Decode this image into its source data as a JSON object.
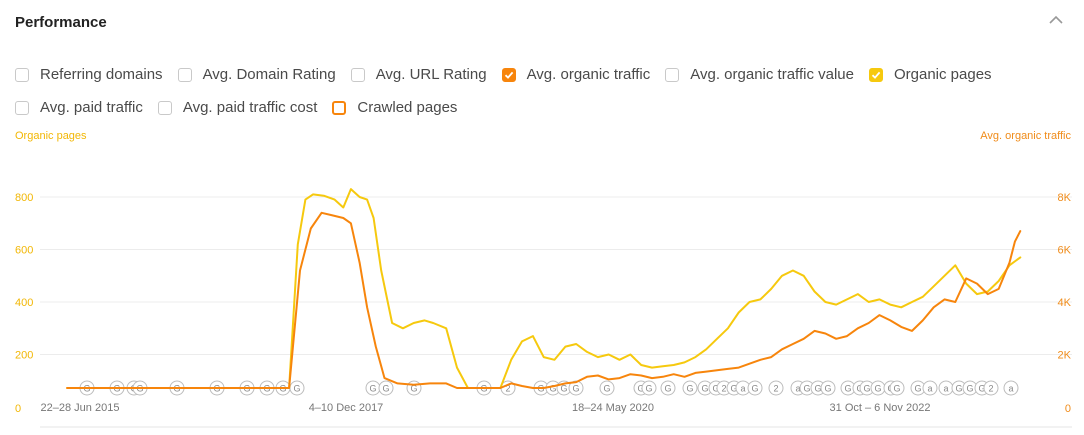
{
  "header": {
    "title": "Performance"
  },
  "legend": {
    "items": [
      {
        "label": "Referring domains",
        "checked": false
      },
      {
        "label": "Avg. Domain Rating",
        "checked": false
      },
      {
        "label": "Avg. URL Rating",
        "checked": false
      },
      {
        "label": "Avg. organic traffic",
        "checked": true,
        "color": "#f7850c"
      },
      {
        "label": "Avg. organic traffic value",
        "checked": false
      },
      {
        "label": "Organic pages",
        "checked": true,
        "color": "#f6c90e"
      },
      {
        "label": "Avg. paid traffic",
        "checked": false
      },
      {
        "label": "Avg. paid traffic cost",
        "checked": false
      },
      {
        "label": "Crawled pages",
        "checked": false,
        "color": "#f7850c"
      }
    ]
  },
  "chart_data": {
    "type": "line",
    "y_left_title": "Organic pages",
    "y_right_title": "Avg. organic traffic",
    "y_left_ticks": [
      "0",
      "200",
      "400",
      "600",
      "800"
    ],
    "y_right_ticks": [
      "0",
      "2K",
      "4K",
      "6K",
      "8K"
    ],
    "x_tick_labels": [
      "22–28 Jun 2015",
      "4–10 Dec 2017",
      "18–24 May 2020",
      "31 Oct – 6 Nov 2022"
    ],
    "ylim_left": [
      0,
      880
    ],
    "ylim_right": [
      0,
      8800
    ],
    "series": [
      {
        "name": "Organic pages",
        "color": "#f6c90e",
        "axis": "left",
        "points": [
          [
            2015.45,
            0
          ],
          [
            2017.4,
            0
          ],
          [
            2017.5,
            10
          ],
          [
            2017.58,
            620
          ],
          [
            2017.65,
            790
          ],
          [
            2017.72,
            810
          ],
          [
            2017.82,
            805
          ],
          [
            2017.92,
            790
          ],
          [
            2018.0,
            760
          ],
          [
            2018.07,
            830
          ],
          [
            2018.15,
            800
          ],
          [
            2018.22,
            790
          ],
          [
            2018.28,
            720
          ],
          [
            2018.35,
            520
          ],
          [
            2018.45,
            320
          ],
          [
            2018.55,
            300
          ],
          [
            2018.65,
            320
          ],
          [
            2018.75,
            330
          ],
          [
            2018.83,
            320
          ],
          [
            2018.95,
            300
          ],
          [
            2019.05,
            150
          ],
          [
            2019.15,
            60
          ],
          [
            2019.25,
            20
          ],
          [
            2019.35,
            5
          ],
          [
            2019.45,
            30
          ],
          [
            2019.55,
            180
          ],
          [
            2019.65,
            250
          ],
          [
            2019.75,
            270
          ],
          [
            2019.85,
            190
          ],
          [
            2019.95,
            180
          ],
          [
            2020.05,
            230
          ],
          [
            2020.15,
            240
          ],
          [
            2020.25,
            210
          ],
          [
            2020.35,
            190
          ],
          [
            2020.45,
            200
          ],
          [
            2020.55,
            180
          ],
          [
            2020.65,
            200
          ],
          [
            2020.75,
            160
          ],
          [
            2020.85,
            150
          ],
          [
            2020.95,
            155
          ],
          [
            2021.05,
            160
          ],
          [
            2021.15,
            170
          ],
          [
            2021.25,
            190
          ],
          [
            2021.35,
            220
          ],
          [
            2021.45,
            260
          ],
          [
            2021.55,
            300
          ],
          [
            2021.65,
            360
          ],
          [
            2021.75,
            400
          ],
          [
            2021.85,
            410
          ],
          [
            2021.95,
            450
          ],
          [
            2022.05,
            500
          ],
          [
            2022.15,
            520
          ],
          [
            2022.25,
            500
          ],
          [
            2022.35,
            440
          ],
          [
            2022.45,
            400
          ],
          [
            2022.55,
            390
          ],
          [
            2022.65,
            410
          ],
          [
            2022.75,
            430
          ],
          [
            2022.85,
            400
          ],
          [
            2022.95,
            410
          ],
          [
            2023.05,
            390
          ],
          [
            2023.15,
            380
          ],
          [
            2023.25,
            400
          ],
          [
            2023.35,
            420
          ],
          [
            2023.45,
            460
          ],
          [
            2023.55,
            500
          ],
          [
            2023.65,
            540
          ],
          [
            2023.75,
            470
          ],
          [
            2023.85,
            430
          ],
          [
            2023.95,
            440
          ],
          [
            2024.05,
            480
          ],
          [
            2024.15,
            540
          ],
          [
            2024.25,
            570
          ]
        ]
      },
      {
        "name": "Avg. organic traffic",
        "color": "#f7850c",
        "axis": "right",
        "points": [
          [
            2015.45,
            0
          ],
          [
            2017.4,
            0
          ],
          [
            2017.5,
            20
          ],
          [
            2017.6,
            5200
          ],
          [
            2017.7,
            6800
          ],
          [
            2017.8,
            7400
          ],
          [
            2017.9,
            7300
          ],
          [
            2018.0,
            7200
          ],
          [
            2018.07,
            7000
          ],
          [
            2018.15,
            5500
          ],
          [
            2018.22,
            3800
          ],
          [
            2018.3,
            2300
          ],
          [
            2018.38,
            1100
          ],
          [
            2018.5,
            900
          ],
          [
            2018.65,
            850
          ],
          [
            2018.8,
            900
          ],
          [
            2018.95,
            900
          ],
          [
            2019.05,
            450
          ],
          [
            2019.15,
            200
          ],
          [
            2019.25,
            100
          ],
          [
            2019.35,
            120
          ],
          [
            2019.45,
            350
          ],
          [
            2019.55,
            900
          ],
          [
            2019.65,
            800
          ],
          [
            2019.75,
            700
          ],
          [
            2019.85,
            680
          ],
          [
            2019.95,
            800
          ],
          [
            2020.05,
            900
          ],
          [
            2020.15,
            950
          ],
          [
            2020.25,
            1150
          ],
          [
            2020.35,
            1200
          ],
          [
            2020.45,
            1050
          ],
          [
            2020.55,
            1100
          ],
          [
            2020.65,
            1250
          ],
          [
            2020.75,
            1200
          ],
          [
            2020.85,
            1100
          ],
          [
            2020.95,
            1150
          ],
          [
            2021.05,
            1250
          ],
          [
            2021.15,
            1150
          ],
          [
            2021.25,
            1300
          ],
          [
            2021.35,
            1350
          ],
          [
            2021.45,
            1400
          ],
          [
            2021.55,
            1450
          ],
          [
            2021.65,
            1500
          ],
          [
            2021.75,
            1650
          ],
          [
            2021.85,
            1800
          ],
          [
            2021.95,
            1900
          ],
          [
            2022.05,
            2200
          ],
          [
            2022.15,
            2400
          ],
          [
            2022.25,
            2600
          ],
          [
            2022.35,
            2900
          ],
          [
            2022.45,
            2800
          ],
          [
            2022.55,
            2600
          ],
          [
            2022.65,
            2700
          ],
          [
            2022.75,
            3000
          ],
          [
            2022.85,
            3200
          ],
          [
            2022.95,
            3500
          ],
          [
            2023.05,
            3300
          ],
          [
            2023.15,
            3050
          ],
          [
            2023.25,
            2900
          ],
          [
            2023.35,
            3300
          ],
          [
            2023.45,
            3800
          ],
          [
            2023.55,
            4100
          ],
          [
            2023.65,
            4000
          ],
          [
            2023.75,
            4900
          ],
          [
            2023.85,
            4700
          ],
          [
            2023.95,
            4300
          ],
          [
            2024.05,
            4500
          ],
          [
            2024.15,
            5500
          ],
          [
            2024.2,
            6300
          ],
          [
            2024.25,
            6700
          ]
        ]
      }
    ]
  }
}
